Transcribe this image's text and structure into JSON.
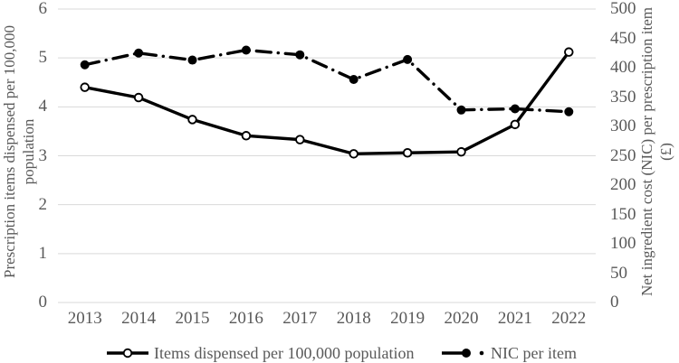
{
  "chart_data": {
    "type": "line",
    "title": "",
    "categories": [
      "2013",
      "2014",
      "2015",
      "2016",
      "2017",
      "2018",
      "2019",
      "2020",
      "2021",
      "2022"
    ],
    "series": [
      {
        "name": "Items dispensed per 100,000 population",
        "axis": "left",
        "line_style": "solid",
        "marker": "open-circle",
        "values": [
          4.4,
          4.19,
          3.74,
          3.41,
          3.33,
          3.04,
          3.06,
          3.08,
          3.64,
          5.12
        ]
      },
      {
        "name": "NIC per item",
        "axis": "right",
        "line_style": "dash-dot",
        "marker": "filled-circle",
        "values": [
          405,
          425,
          413,
          430,
          422,
          380,
          414,
          328,
          330,
          325
        ]
      }
    ],
    "left_axis": {
      "title_line1": "Prescription items dispensed per 100,000",
      "title_line2": "population",
      "min": 0,
      "max": 6,
      "step": 1,
      "ticks": [
        "0",
        "1",
        "2",
        "3",
        "4",
        "5",
        "6"
      ]
    },
    "right_axis": {
      "title_line1": "Net ingredient cost (NIC) per prescription item",
      "title_line2": "(£)",
      "min": 0,
      "max": 500,
      "step": 50,
      "ticks": [
        "0",
        "50",
        "100",
        "150",
        "200",
        "250",
        "300",
        "350",
        "400",
        "450",
        "500"
      ]
    },
    "grid": true,
    "legend_position": "bottom",
    "colors": {
      "series": "#000000",
      "text": "#595959",
      "gridline": "#d9d9d9",
      "background": "#ffffff"
    }
  }
}
